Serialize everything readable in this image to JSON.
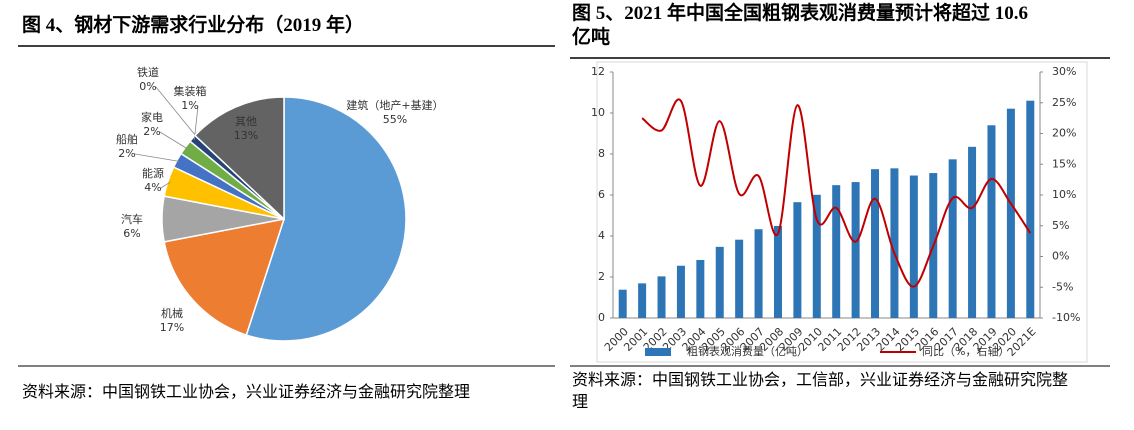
{
  "chart_data": [
    {
      "type": "pie",
      "title": "图 4、钢材下游需求行业分布（2019 年）",
      "categories": [
        "建筑（地产+基建）",
        "机械",
        "汽车",
        "能源",
        "船舶",
        "家电",
        "集装箱",
        "铁道",
        "其他"
      ],
      "values": [
        55,
        17,
        6,
        4,
        2,
        2,
        1,
        0,
        13
      ],
      "value_labels": [
        "55%",
        "17%",
        "6%",
        "4%",
        "2%",
        "2%",
        "1%",
        "0%",
        "13%"
      ],
      "colors": [
        "#5b9bd5",
        "#ed7d31",
        "#a5a5a5",
        "#ffc000",
        "#4472c4",
        "#70ad47",
        "#264478",
        "#9e480e",
        "#636363"
      ]
    },
    {
      "type": "bar-line",
      "title": "图 5、2021 年中国全国粗钢表观消费量预计将超过 10.6 亿吨",
      "categories": [
        "2000",
        "2001",
        "2002",
        "2003",
        "2004",
        "2005",
        "2006",
        "2007",
        "2008",
        "2009",
        "2010",
        "2011",
        "2012",
        "2013",
        "2014",
        "2015",
        "2016",
        "2017",
        "2018",
        "2019",
        "2020",
        "2021E"
      ],
      "series": [
        {
          "name": "粗钢表观消费量（亿吨）",
          "color": "#2e75b6",
          "type": "bar",
          "values": [
            1.38,
            1.69,
            2.03,
            2.55,
            2.83,
            3.47,
            3.82,
            4.33,
            4.49,
            5.65,
            6.01,
            6.48,
            6.63,
            7.26,
            7.3,
            6.95,
            7.07,
            7.74,
            8.35,
            9.4,
            10.21,
            10.6
          ]
        },
        {
          "name": "同比（%，右轴）",
          "color": "#c00000",
          "type": "line",
          "axis": "y2",
          "values": [
            null,
            22.5,
            20.5,
            25.3,
            11.5,
            22.0,
            10.2,
            13.1,
            3.7,
            24.6,
            6.0,
            7.9,
            2.4,
            9.4,
            0.5,
            -4.9,
            1.7,
            9.5,
            7.9,
            12.6,
            8.6,
            3.8
          ]
        }
      ],
      "ylim": [
        0,
        12
      ],
      "yticks": [
        0,
        2,
        4,
        6,
        8,
        10,
        12
      ],
      "y2lim": [
        -10,
        30
      ],
      "y2ticks": [
        {
          "value": -10,
          "label": "-10%"
        },
        {
          "value": -5,
          "label": "-5%"
        },
        {
          "value": 0,
          "label": "0%"
        },
        {
          "value": 5,
          "label": "5%"
        },
        {
          "value": 10,
          "label": "10%"
        },
        {
          "value": 15,
          "label": "15%"
        },
        {
          "value": 20,
          "label": "20%"
        },
        {
          "value": 25,
          "label": "25%"
        },
        {
          "value": 30,
          "label": "30%"
        }
      ],
      "legend": "bottom"
    }
  ],
  "sources": [
    "资料来源：中国钢铁工业协会，兴业证券经济与金融研究院整理",
    "资料来源：中国钢铁工业协会，工信部，兴业证券经济与金融研究院整理"
  ]
}
